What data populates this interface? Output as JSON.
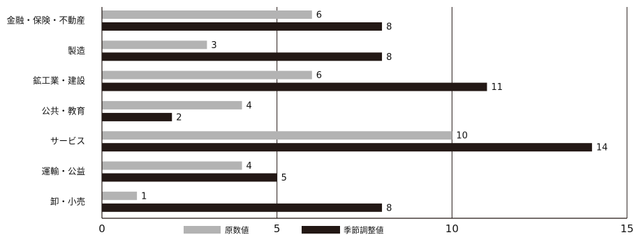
{
  "chart_data": {
    "type": "bar",
    "orientation": "horizontal",
    "categories": [
      "金融・保険・不動産",
      "製造",
      "鉱工業・建設",
      "公共・教育",
      "サービス",
      "運輸・公益",
      "卸・小売"
    ],
    "series": [
      {
        "name": "原数値",
        "values": [
          6,
          3,
          6,
          4,
          10,
          4,
          1
        ]
      },
      {
        "name": "季節調整値",
        "values": [
          8,
          8,
          11,
          2,
          14,
          5,
          8
        ]
      }
    ],
    "xlim": [
      0,
      15
    ],
    "xticks": [
      "0",
      "5",
      "10",
      "15"
    ],
    "grid": "vertical",
    "legend_position": "bottom"
  },
  "colors": {
    "series_0": "#b3b3b3",
    "series_1": "#231815",
    "axis": "#231815"
  }
}
